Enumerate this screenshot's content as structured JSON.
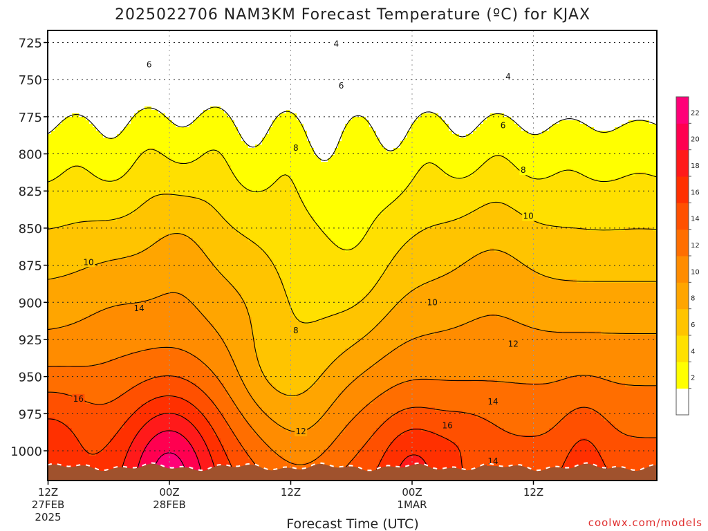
{
  "chart_data": {
    "type": "heatmap",
    "title": "2025022706 NAM3KM Forecast Temperature (ºC) for KJAX",
    "xlabel": "Forecast Time (UTC)",
    "ylabel": "",
    "credit": "coolwx.com/models",
    "x_ticks": [
      {
        "t": 6,
        "lines": [
          "12Z",
          "27FEB",
          "2025"
        ]
      },
      {
        "t": 18,
        "lines": [
          "00Z",
          "28FEB"
        ]
      },
      {
        "t": 30,
        "lines": [
          "12Z"
        ]
      },
      {
        "t": 42,
        "lines": [
          "00Z",
          "1MAR"
        ]
      },
      {
        "t": 54,
        "lines": [
          "12Z"
        ]
      }
    ],
    "x_range_hours": [
      0,
      60
    ],
    "y_ticks": [
      "725",
      "750",
      "775",
      "800",
      "825",
      "850",
      "875",
      "900",
      "925",
      "950",
      "975",
      "1000"
    ],
    "y_range_hpa": [
      1015,
      717
    ],
    "grid": true,
    "colorbar": {
      "ticks": [
        "2",
        "4",
        "6",
        "8",
        "10",
        "12",
        "14",
        "16",
        "18",
        "20",
        "22"
      ],
      "bins": [
        {
          "lo": 0,
          "hi": 2,
          "color": "#ffffff"
        },
        {
          "lo": 2,
          "hi": 4,
          "color": "#ffff00"
        },
        {
          "lo": 4,
          "hi": 6,
          "color": "#ffe000"
        },
        {
          "lo": 6,
          "hi": 8,
          "color": "#ffc400"
        },
        {
          "lo": 8,
          "hi": 10,
          "color": "#ffa500"
        },
        {
          "lo": 10,
          "hi": 12,
          "color": "#ff8c00"
        },
        {
          "lo": 12,
          "hi": 14,
          "color": "#ff6e00"
        },
        {
          "lo": 14,
          "hi": 16,
          "color": "#ff5000"
        },
        {
          "lo": 16,
          "hi": 18,
          "color": "#ff3000"
        },
        {
          "lo": 18,
          "hi": 20,
          "color": "#ff1a1a"
        },
        {
          "lo": 20,
          "hi": 22,
          "color": "#ff0050"
        },
        {
          "lo": 22,
          "hi": 24,
          "color": "#ff0078"
        }
      ]
    },
    "contour_labels": [
      {
        "text": "4",
        "t": 34.5,
        "p": 726
      },
      {
        "text": "4",
        "t": 51.5,
        "p": 748
      },
      {
        "text": "6",
        "t": 16,
        "p": 740
      },
      {
        "text": "6",
        "t": 35,
        "p": 754
      },
      {
        "text": "6",
        "t": 51,
        "p": 781
      },
      {
        "text": "8",
        "t": 3,
        "p": 764
      },
      {
        "text": "8",
        "t": 30.5,
        "p": 796
      },
      {
        "text": "8",
        "t": 53,
        "p": 811
      },
      {
        "text": "8",
        "t": 30.5,
        "p": 919
      },
      {
        "text": "10",
        "t": 10,
        "p": 873
      },
      {
        "text": "10",
        "t": 44,
        "p": 900
      },
      {
        "text": "10",
        "t": 53.5,
        "p": 842
      },
      {
        "text": "12",
        "t": 3,
        "p": 882
      },
      {
        "text": "12",
        "t": 31,
        "p": 987
      },
      {
        "text": "12",
        "t": 52,
        "p": 928
      },
      {
        "text": "14",
        "t": 15,
        "p": 904
      },
      {
        "text": "14",
        "t": 50,
        "p": 967
      },
      {
        "text": "14",
        "t": 50,
        "p": 1007
      },
      {
        "text": "16",
        "t": 9,
        "p": 965
      },
      {
        "text": "16",
        "t": 45.5,
        "p": 983
      }
    ],
    "temperature_pattern_description": null
  }
}
